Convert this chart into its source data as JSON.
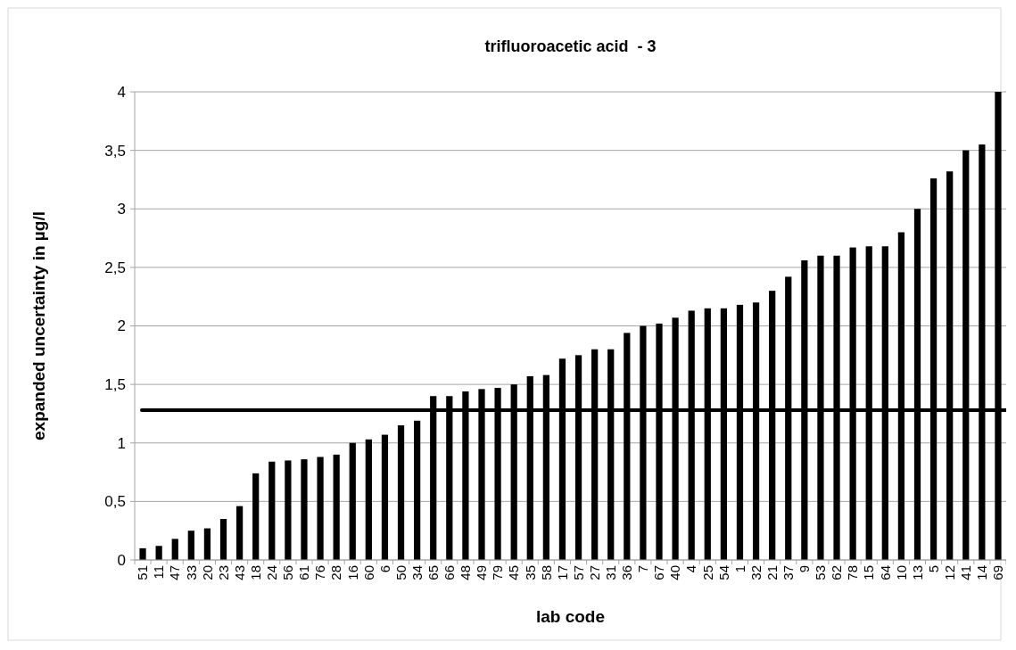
{
  "chart_data": {
    "type": "bar",
    "title": "trifluoroacetic acid  - 3",
    "xlabel": "lab code",
    "ylabel": "expanded uncertainty in µg/l",
    "categories": [
      "51",
      "11",
      "47",
      "33",
      "20",
      "23",
      "43",
      "18",
      "24",
      "56",
      "61",
      "76",
      "28",
      "16",
      "60",
      "6",
      "50",
      "34",
      "65",
      "66",
      "48",
      "49",
      "79",
      "45",
      "35",
      "58",
      "17",
      "57",
      "27",
      "31",
      "36",
      "7",
      "67",
      "40",
      "4",
      "25",
      "54",
      "1",
      "32",
      "21",
      "37",
      "9",
      "53",
      "62",
      "78",
      "15",
      "64",
      "10",
      "13",
      "5",
      "12",
      "41",
      "14",
      "69"
    ],
    "values": [
      0.1,
      0.12,
      0.18,
      0.25,
      0.27,
      0.35,
      0.46,
      0.74,
      0.84,
      0.85,
      0.86,
      0.88,
      0.9,
      1.0,
      1.03,
      1.07,
      1.15,
      1.19,
      1.4,
      1.4,
      1.44,
      1.46,
      1.47,
      1.5,
      1.57,
      1.58,
      1.72,
      1.75,
      1.8,
      1.8,
      1.94,
      2.0,
      2.02,
      2.07,
      2.13,
      2.15,
      2.15,
      2.18,
      2.2,
      2.3,
      2.42,
      2.56,
      2.6,
      2.6,
      2.67,
      2.68,
      2.68,
      2.8,
      3.0,
      3.26,
      3.32,
      3.5,
      3.55,
      4.0
    ],
    "color": "#000000",
    "ylim": [
      0,
      4
    ],
    "yticks": [
      0,
      {
        "value": 0.5,
        "label": "0,5"
      },
      1,
      {
        "value": 1.5,
        "label": "1,5"
      },
      2,
      {
        "value": 2.5,
        "label": "2,5"
      },
      3,
      {
        "value": 3.5,
        "label": "3,5"
      },
      4
    ],
    "grid": "y",
    "ref_lines": [
      {
        "axis": "y",
        "value": 1.28,
        "color": "#000000"
      }
    ]
  }
}
